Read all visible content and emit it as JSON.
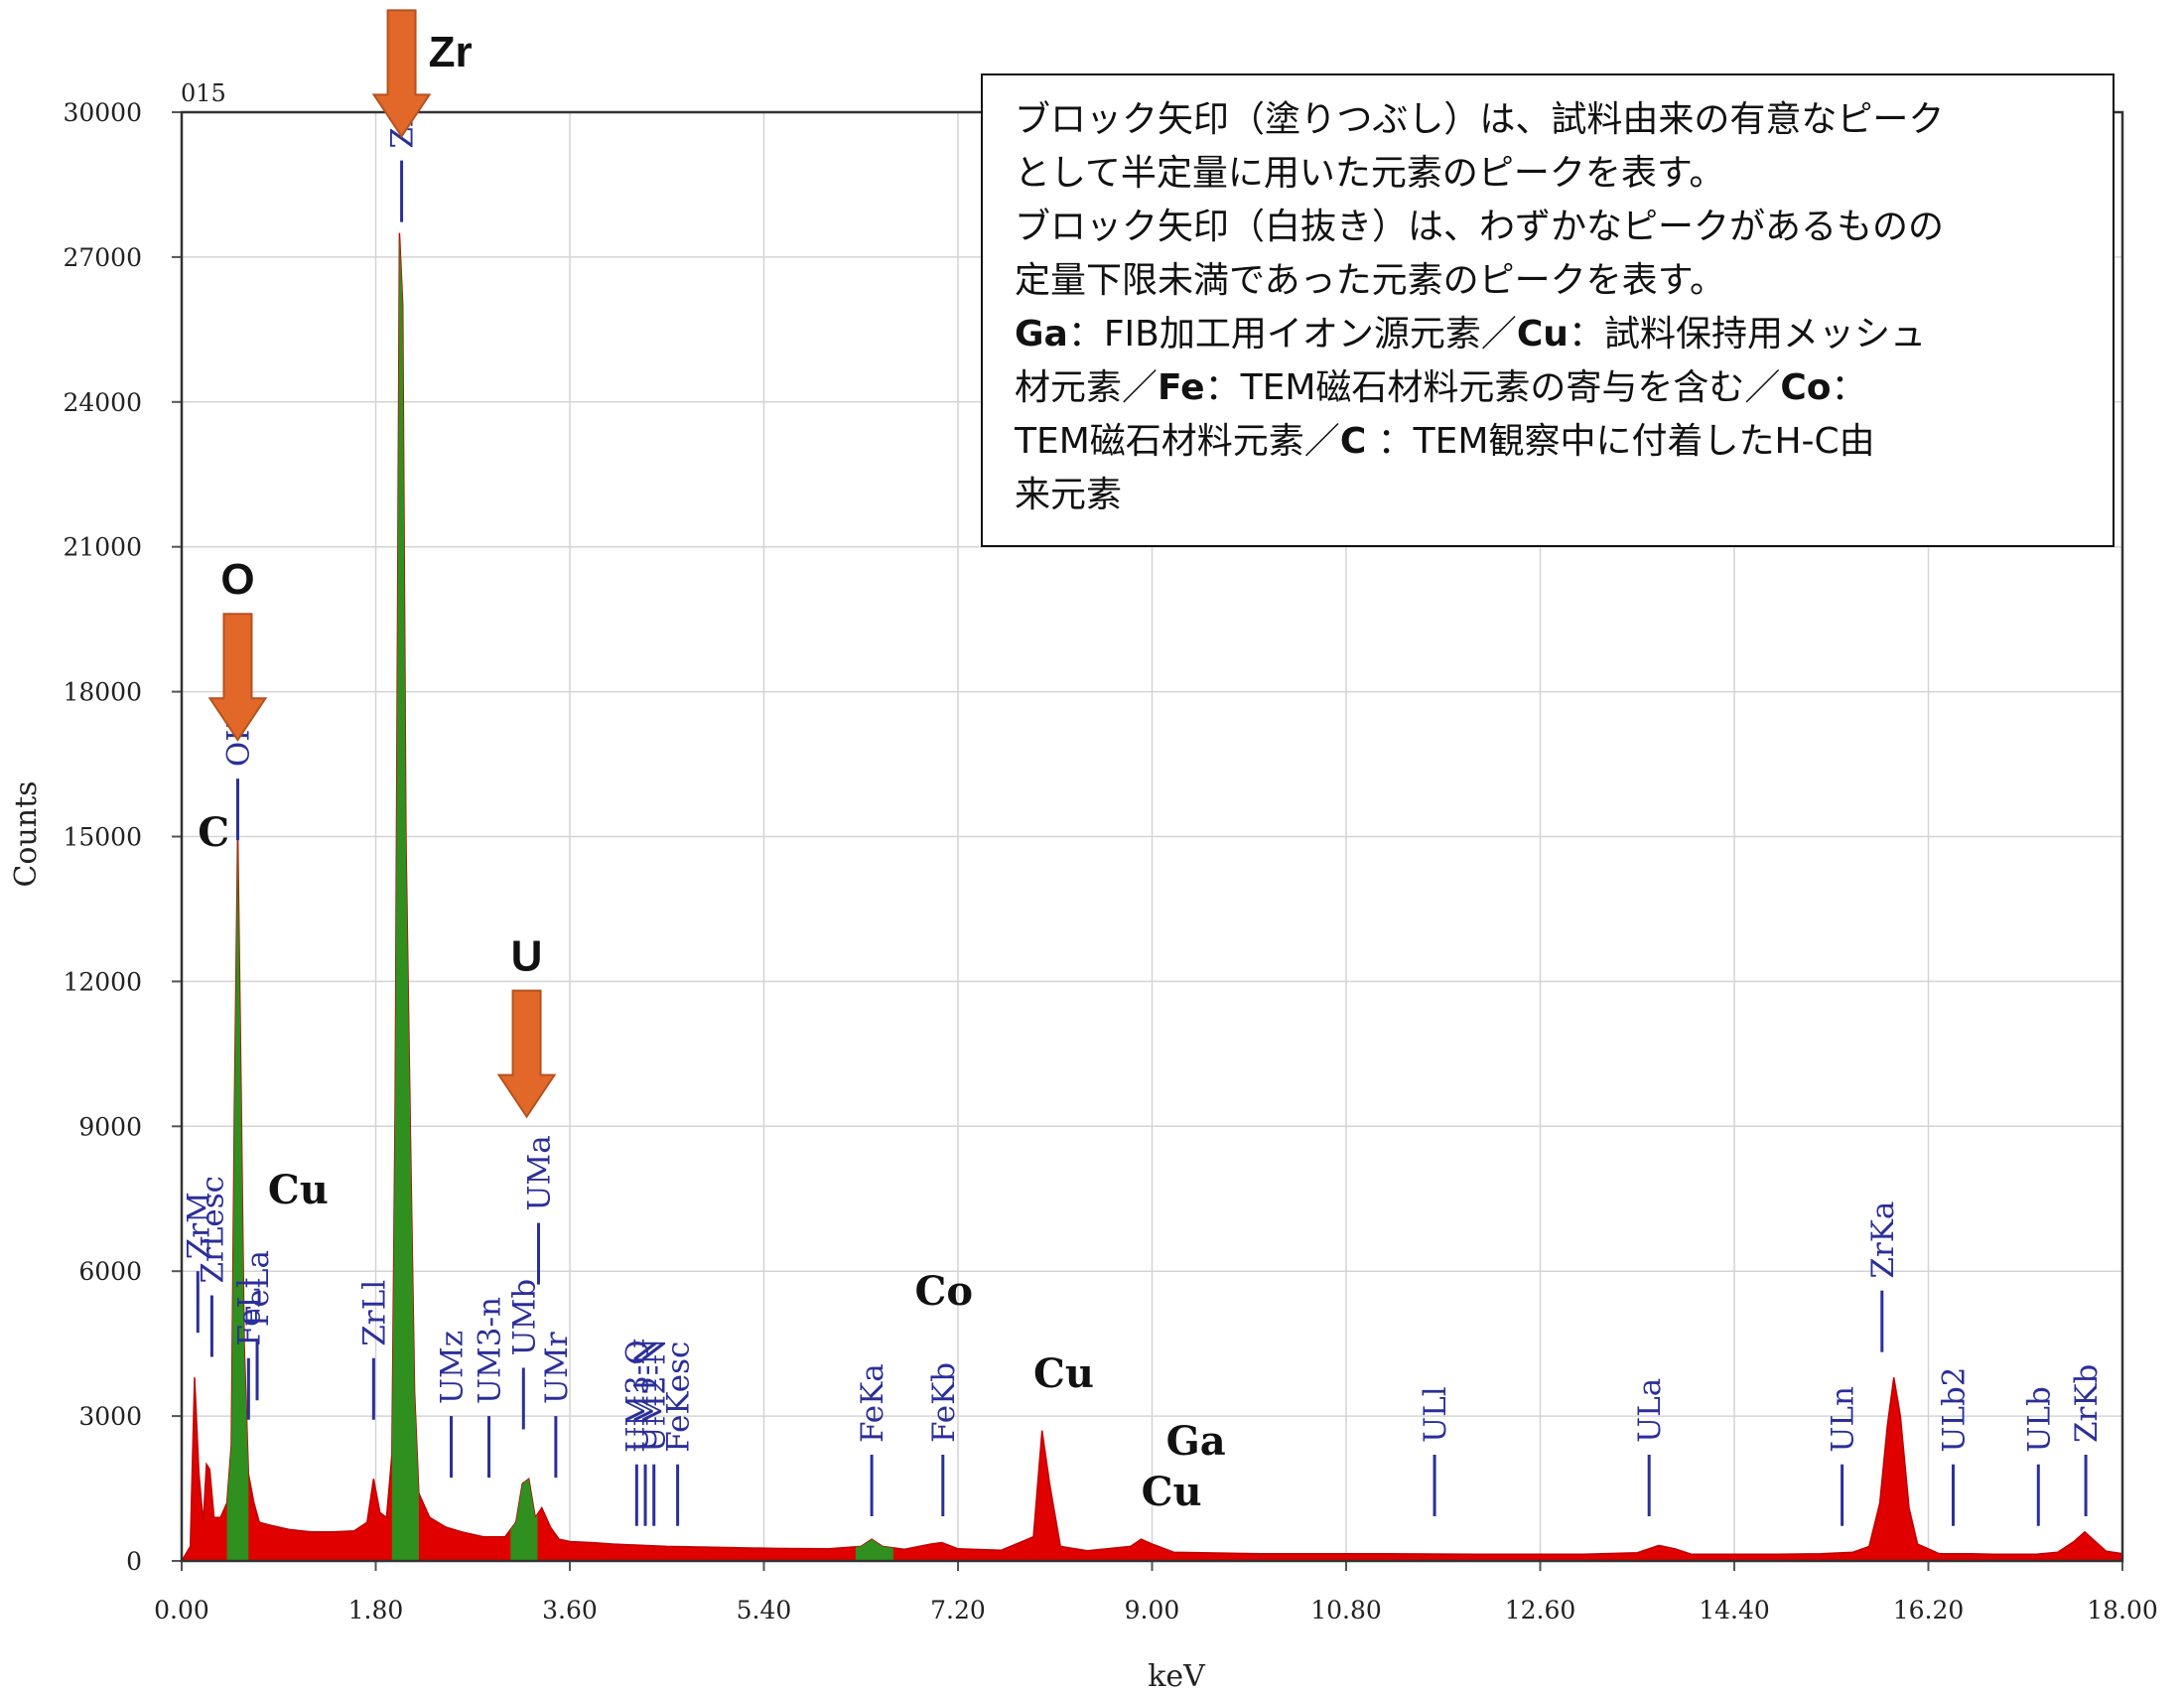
{
  "chart_data": {
    "type": "area",
    "title": "",
    "sample_id": "015",
    "xlabel": "keV",
    "ylabel": "Counts",
    "xlim": [
      0,
      18
    ],
    "ylim": [
      0,
      30000
    ],
    "x_ticks": [
      "0.00",
      "1.80",
      "3.60",
      "5.40",
      "7.20",
      "9.00",
      "10.80",
      "12.60",
      "14.40",
      "16.20",
      "18.00"
    ],
    "y_ticks": [
      "0",
      "3000",
      "6000",
      "9000",
      "12000",
      "15000",
      "18000",
      "21000",
      "24000",
      "27000",
      "30000"
    ],
    "grid": true,
    "colors": {
      "spectrum": "#e00000",
      "highlight": "#2f8f1f",
      "line_marker": "#2b2f9a",
      "arrow": "#e2682a"
    },
    "spectrum": [
      [
        0.0,
        0
      ],
      [
        0.08,
        300
      ],
      [
        0.12,
        3800
      ],
      [
        0.16,
        1800
      ],
      [
        0.2,
        800
      ],
      [
        0.23,
        2000
      ],
      [
        0.26,
        1900
      ],
      [
        0.3,
        900
      ],
      [
        0.36,
        900
      ],
      [
        0.42,
        1200
      ],
      [
        0.46,
        2400
      ],
      [
        0.49,
        9500
      ],
      [
        0.52,
        15100
      ],
      [
        0.55,
        10000
      ],
      [
        0.58,
        4500
      ],
      [
        0.62,
        1800
      ],
      [
        0.67,
        1200
      ],
      [
        0.72,
        800
      ],
      [
        0.8,
        750
      ],
      [
        0.9,
        700
      ],
      [
        1.0,
        650
      ],
      [
        1.2,
        600
      ],
      [
        1.4,
        600
      ],
      [
        1.6,
        620
      ],
      [
        1.72,
        800
      ],
      [
        1.78,
        1700
      ],
      [
        1.84,
        1000
      ],
      [
        1.9,
        900
      ],
      [
        1.95,
        2200
      ],
      [
        1.98,
        9500
      ],
      [
        2.02,
        27500
      ],
      [
        2.05,
        26000
      ],
      [
        2.08,
        15000
      ],
      [
        2.12,
        9000
      ],
      [
        2.16,
        3500
      ],
      [
        2.2,
        1400
      ],
      [
        2.3,
        900
      ],
      [
        2.45,
        700
      ],
      [
        2.6,
        600
      ],
      [
        2.8,
        500
      ],
      [
        3.0,
        500
      ],
      [
        3.1,
        800
      ],
      [
        3.16,
        1600
      ],
      [
        3.22,
        1700
      ],
      [
        3.28,
        900
      ],
      [
        3.34,
        1100
      ],
      [
        3.42,
        700
      ],
      [
        3.5,
        450
      ],
      [
        3.6,
        400
      ],
      [
        3.8,
        380
      ],
      [
        4.0,
        350
      ],
      [
        4.5,
        300
      ],
      [
        5.0,
        280
      ],
      [
        5.5,
        260
      ],
      [
        6.0,
        250
      ],
      [
        6.3,
        300
      ],
      [
        6.4,
        450
      ],
      [
        6.5,
        300
      ],
      [
        6.7,
        240
      ],
      [
        6.95,
        350
      ],
      [
        7.05,
        380
      ],
      [
        7.2,
        250
      ],
      [
        7.6,
        220
      ],
      [
        7.9,
        500
      ],
      [
        7.98,
        2700
      ],
      [
        8.05,
        1600
      ],
      [
        8.15,
        300
      ],
      [
        8.4,
        210
      ],
      [
        8.8,
        300
      ],
      [
        8.9,
        450
      ],
      [
        9.0,
        350
      ],
      [
        9.2,
        180
      ],
      [
        10.0,
        150
      ],
      [
        11.0,
        150
      ],
      [
        12.0,
        140
      ],
      [
        13.0,
        140
      ],
      [
        13.5,
        170
      ],
      [
        13.7,
        320
      ],
      [
        13.85,
        250
      ],
      [
        14.0,
        140
      ],
      [
        14.8,
        140
      ],
      [
        15.2,
        150
      ],
      [
        15.5,
        180
      ],
      [
        15.65,
        300
      ],
      [
        15.75,
        1200
      ],
      [
        15.82,
        2800
      ],
      [
        15.88,
        3800
      ],
      [
        15.94,
        3000
      ],
      [
        16.02,
        1100
      ],
      [
        16.1,
        350
      ],
      [
        16.3,
        150
      ],
      [
        16.6,
        150
      ],
      [
        16.8,
        140
      ],
      [
        17.2,
        140
      ],
      [
        17.4,
        180
      ],
      [
        17.55,
        400
      ],
      [
        17.65,
        600
      ],
      [
        17.75,
        400
      ],
      [
        17.85,
        200
      ],
      [
        18.0,
        150
      ]
    ],
    "highlight_peaks": [
      {
        "element": "O",
        "range": [
          0.42,
          0.62
        ]
      },
      {
        "element": "Zr",
        "range": [
          1.95,
          2.2
        ]
      },
      {
        "element": "U",
        "range": [
          3.05,
          3.3
        ]
      },
      {
        "element": "Fe",
        "range": [
          6.25,
          6.6
        ]
      }
    ],
    "line_markers": [
      {
        "label": "ZrM",
        "x": 0.15,
        "y_top": 6000
      },
      {
        "label": "ZrLesc",
        "x": 0.28,
        "y_top": 5500
      },
      {
        "label": "FeLl",
        "x": 0.62,
        "y_top": 4200
      },
      {
        "label": "FeLa",
        "x": 0.7,
        "y_top": 4600
      },
      {
        "label": "OKa",
        "x": 0.52,
        "y_top": 16200
      },
      {
        "label": "ZrLl",
        "x": 1.78,
        "y_top": 4200
      },
      {
        "label": "ZrLa",
        "x": 2.04,
        "y_top": 29000
      },
      {
        "label": "UMz",
        "x": 2.5,
        "y_top": 3000
      },
      {
        "label": "UM3-n",
        "x": 2.85,
        "y_top": 3000
      },
      {
        "label": "UMb",
        "x": 3.17,
        "y_top": 4000
      },
      {
        "label": "UMa",
        "x": 3.31,
        "y_top": 7000
      },
      {
        "label": "UMr",
        "x": 3.47,
        "y_top": 3000
      },
      {
        "label": "UM3-O",
        "x": 4.22,
        "y_top": 2000
      },
      {
        "label": "UM1-N",
        "x": 4.3,
        "y_top": 2000
      },
      {
        "label": "UM2-N",
        "x": 4.38,
        "y_top": 2000
      },
      {
        "label": "FeKesc",
        "x": 4.6,
        "y_top": 2000
      },
      {
        "label": "FeKa",
        "x": 6.4,
        "y_top": 2200
      },
      {
        "label": "FeKb",
        "x": 7.06,
        "y_top": 2200
      },
      {
        "label": "ULl",
        "x": 11.62,
        "y_top": 2200
      },
      {
        "label": "ULa",
        "x": 13.61,
        "y_top": 2200
      },
      {
        "label": "ULn",
        "x": 15.4,
        "y_top": 2000
      },
      {
        "label": "ZrKa",
        "x": 15.77,
        "y_top": 5600
      },
      {
        "label": "ULb2",
        "x": 16.43,
        "y_top": 2000
      },
      {
        "label": "ULb",
        "x": 17.22,
        "y_top": 2000
      },
      {
        "label": "ZrKb",
        "x": 17.66,
        "y_top": 2200
      }
    ],
    "element_labels": [
      {
        "text": "C",
        "x": 0.15,
        "y": 14800
      },
      {
        "text": "Cu",
        "x": 0.8,
        "y": 7400
      },
      {
        "text": "Co",
        "x": 6.8,
        "y": 5300
      },
      {
        "text": "Cu",
        "x": 7.9,
        "y": 3600
      },
      {
        "text": "Ga",
        "x": 9.13,
        "y": 2200
      },
      {
        "text": "Cu",
        "x": 8.9,
        "y": 1150
      }
    ],
    "arrow_labels": [
      {
        "text": "Zr",
        "x": 2.04,
        "tip": 29500
      },
      {
        "text": "O",
        "x": 0.52,
        "tip": 17000
      },
      {
        "text": "U",
        "x": 3.2,
        "tip": 9200
      }
    ]
  },
  "note": {
    "line1": "ブロック矢印（塗りつぶし）は、試料由来の有意なピーク",
    "line2": "として半定量に用いた元素のピークを表す。",
    "line3": "ブロック矢印（白抜き）は、わずかなピークがあるものの",
    "line4": "定量下限未満であった元素のピークを表す。",
    "ga": "Ga",
    "ga_text": "：FIB加工用イオン源元素／",
    "cu": "Cu",
    "cu_text": "：試料保持用メッシュ",
    "line6_a": "材元素／",
    "fe": "Fe",
    "fe_text": "：TEM磁石材料元素の寄与を含む／",
    "co": "Co",
    "co_text": "：",
    "line7_a": "TEM磁石材料元素／",
    "c": "C",
    "c_text": " ：TEM観察中に付着したH-C由",
    "line8": "来元素"
  }
}
